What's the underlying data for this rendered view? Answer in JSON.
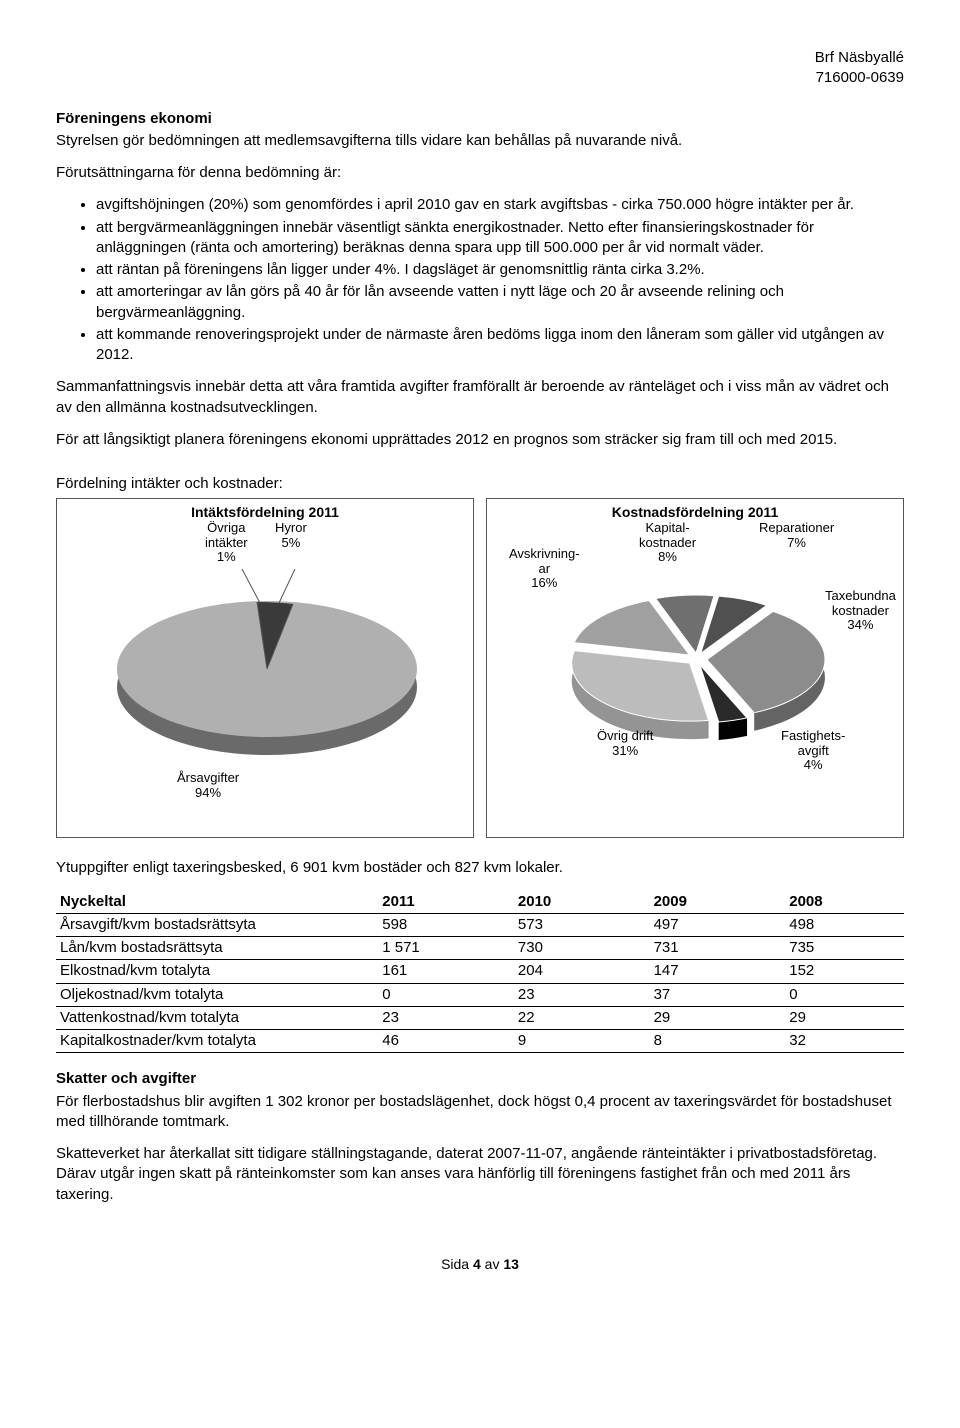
{
  "header": {
    "org": "Brf Näsbyallé",
    "orgnr": "716000-0639"
  },
  "h1": "Föreningens ekonomi",
  "intro": "Styrelsen gör bedömningen att medlemsavgifterna tills vidare kan behållas på nuvarande nivå.",
  "precond": "Förutsättningarna för denna bedömning är:",
  "bullets": [
    "avgiftshöjningen (20%) som genomfördes i april 2010 gav en stark avgiftsbas - cirka 750.000 högre intäkter per år.",
    "att bergvärmeanläggningen innebär väsentligt sänkta energikostnader. Netto efter finansieringskostnader för anläggningen (ränta och amortering) beräknas denna spara upp till 500.000 per år vid normalt väder.",
    "att räntan på föreningens lån ligger under 4%. I dagsläget är genomsnittlig ränta cirka 3.2%.",
    "att amorteringar av lån görs på 40 år för lån avseende vatten i nytt läge och 20 år avseende relining och bergvärmeanläggning.",
    "att kommande renoveringsprojekt under de närmaste åren bedöms ligga inom den låneram som gäller vid utgången av 2012."
  ],
  "summary": "Sammanfattningsvis innebär detta att våra framtida avgifter framförallt är beroende av ränteläget och i viss mån av vädret och av den allmänna kostnadsutvecklingen.",
  "prognos": "För att långsiktigt planera föreningens ekonomi upprättades 2012 en prognos som sträcker sig fram till och med 2015.",
  "charts_heading": "Fördelning intäkter och kostnader:",
  "chart1": {
    "type": "pie",
    "title": "Intäktsfördelning 2011",
    "slices": [
      {
        "label": "Övriga\nintäkter\n1%",
        "value": 1,
        "color": "#7a7a7a"
      },
      {
        "label": "Hyror\n5%",
        "value": 5,
        "color": "#3a3a3a"
      },
      {
        "label": "Årsavgifter\n94%",
        "value": 94,
        "color": "#9e9e9e"
      }
    ],
    "background": "#ffffff",
    "label_fontsize": 13
  },
  "chart2": {
    "type": "pie",
    "title": "Kostnadsfördelning 2011",
    "slices": [
      {
        "label": "Kapital-\nkostnader\n8%",
        "value": 8,
        "color": "#6f6f6f"
      },
      {
        "label": "Reparationer\n7%",
        "value": 7,
        "color": "#505050"
      },
      {
        "label": "Taxebundna\nkostnader\n34%",
        "value": 34,
        "color": "#8c8c8c"
      },
      {
        "label": "Fastighets-\navgift\n4%",
        "value": 4,
        "color": "#2a2a2a"
      },
      {
        "label": "Övrig drift\n31%",
        "value": 31,
        "color": "#bcbcbc"
      },
      {
        "label": "Avskrivning-\nar\n16%",
        "value": 16,
        "color": "#a0a0a0"
      }
    ],
    "background": "#ffffff",
    "label_fontsize": 13
  },
  "ytuppgifter": "Ytuppgifter enligt taxeringsbesked, 6 901 kvm bostäder och 827 kvm lokaler.",
  "table": {
    "columns": [
      "Nyckeltal",
      "2011",
      "2010",
      "2009",
      "2008"
    ],
    "rows": [
      [
        "Årsavgift/kvm bostadsrättsyta",
        "598",
        "573",
        "497",
        "498"
      ],
      [
        "Lån/kvm bostadsrättsyta",
        "1 571",
        "730",
        "731",
        "735"
      ],
      [
        "Elkostnad/kvm totalyta",
        "161",
        "204",
        "147",
        "152"
      ],
      [
        "Oljekostnad/kvm totalyta",
        "0",
        "23",
        "37",
        "0"
      ],
      [
        "Vattenkostnad/kvm totalyta",
        "23",
        "22",
        "29",
        "29"
      ],
      [
        "Kapitalkostnader/kvm totalyta",
        "46",
        "9",
        "8",
        "32"
      ]
    ],
    "col_widths": [
      "38%",
      "16%",
      "16%",
      "16%",
      "14%"
    ]
  },
  "skatter_h": "Skatter och avgifter",
  "skatter_p1": "För flerbostadshus blir avgiften 1 302 kronor per bostadslägenhet, dock högst 0,4 procent av taxeringsvärdet för bostadshuset med tillhörande tomtmark.",
  "skatter_p2": "Skatteverket har återkallat sitt tidigare ställningstagande, daterat 2007-11-07, angående ränteintäkter i privatbostadsföretag. Därav utgår ingen skatt på ränteinkomster som kan anses vara hänförlig till föreningens fastighet från och med 2011 års taxering.",
  "footer": {
    "pre": "Sida ",
    "cur": "4",
    "mid": " av ",
    "tot": "13"
  }
}
